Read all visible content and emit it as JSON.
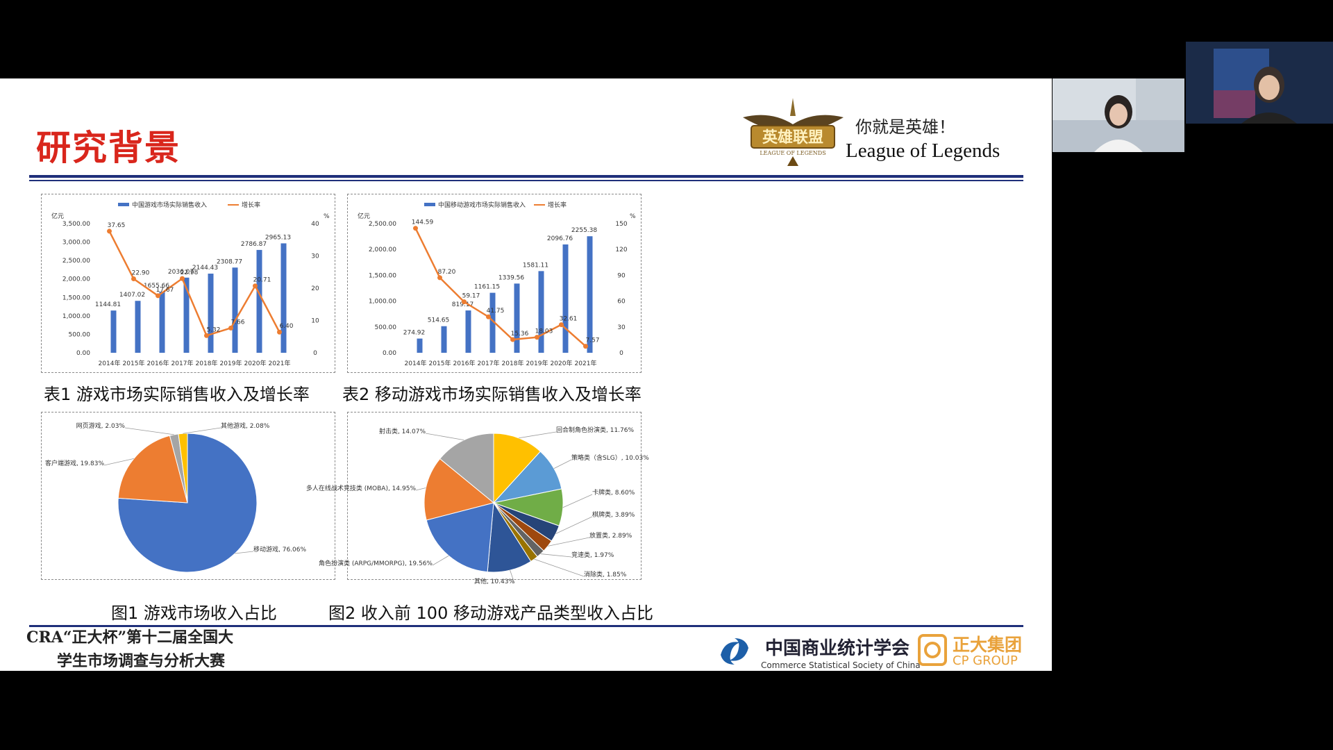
{
  "slide": {
    "title": "研究背景",
    "slogan": "你就是英雄！",
    "game_name": "League of Legends",
    "logo_text": "英雄联盟",
    "logo_subtext": "LEAGUE OF LEGENDS"
  },
  "captions": {
    "table1": "表1 游戏市场实际销售收入及增长率",
    "table2": "表2 移动游戏市场实际销售收入及增长率",
    "fig1": "图1 游戏市场收入占比",
    "fig2": "图2 收入前 100 移动游戏产品类型收入占比"
  },
  "footer": {
    "line1": "CRA“正大杯”第十二届全国大",
    "line2": "学生市场调查与分析大赛",
    "cssc_cn": "中国商业统计学会",
    "cssc_en": "Commerce Statistical Society of China",
    "cp_cn": "正大集团",
    "cp_en": "CP GROUP"
  },
  "colors": {
    "bar": "#4472c4",
    "line": "#ed7d31",
    "title_red": "#d9261c",
    "rule_navy": "#1f2f7a"
  },
  "chart_data": [
    {
      "type": "bar",
      "legend": [
        "中国游戏市场实际销售收入",
        "增长率"
      ],
      "ylabel": "亿元",
      "y2label": "%",
      "categories": [
        "2014年",
        "2015年",
        "2016年",
        "2017年",
        "2018年",
        "2019年",
        "2020年",
        "2021年"
      ],
      "y_ticks": [
        "3,500.00",
        "3,000.00",
        "2,500.00",
        "2,000.00",
        "1,500.00",
        "1,000.00",
        "500.00",
        "0.00"
      ],
      "y2_ticks": [
        "40",
        "30",
        "20",
        "10",
        "0"
      ],
      "ylim": [
        0,
        3500
      ],
      "y2lim": [
        0,
        40
      ],
      "series": [
        {
          "name": "中国游戏市场实际销售收入",
          "type": "bar",
          "values": [
            1144.81,
            1407.02,
            1655.66,
            2036.07,
            2144.43,
            2308.77,
            2786.87,
            2965.13
          ],
          "labels": [
            "1144.81",
            "1407.02",
            "1655.66",
            "2036.07",
            "2144.43",
            "2308.77",
            "2786.87",
            "2965.13"
          ]
        },
        {
          "name": "增长率",
          "type": "line",
          "values": [
            37.65,
            22.9,
            17.67,
            22.98,
            5.32,
            7.66,
            20.71,
            6.4
          ],
          "labels": [
            "37.65",
            "22.90",
            "17.67",
            "22.98",
            "5.32",
            "7.66",
            "20.71",
            "6.40"
          ]
        }
      ]
    },
    {
      "type": "bar",
      "legend": [
        "中国移动游戏市场实际销售收入",
        "增长率"
      ],
      "ylabel": "亿元",
      "y2label": "%",
      "categories": [
        "2014年",
        "2015年",
        "2016年",
        "2017年",
        "2018年",
        "2019年",
        "2020年",
        "2021年"
      ],
      "y_ticks": [
        "2,500.00",
        "2,000.00",
        "1,500.00",
        "1,000.00",
        "500.00",
        "0.00"
      ],
      "y2_ticks": [
        "150",
        "120",
        "90",
        "60",
        "30",
        "0"
      ],
      "ylim": [
        0,
        2500
      ],
      "y2lim": [
        0,
        150
      ],
      "series": [
        {
          "name": "中国移动游戏市场实际销售收入",
          "type": "bar",
          "values": [
            274.92,
            514.65,
            819.17,
            1161.15,
            1339.56,
            1581.11,
            2096.76,
            2255.38
          ],
          "labels": [
            "274.92",
            "514.65",
            "819.17",
            "1161.15",
            "1339.56",
            "1581.11",
            "2096.76",
            "2255.38"
          ]
        },
        {
          "name": "增长率",
          "type": "line",
          "values": [
            144.59,
            87.2,
            59.17,
            41.75,
            15.36,
            18.03,
            32.61,
            7.57
          ],
          "labels": [
            "144.59",
            "87.20",
            "59.17",
            "41.75",
            "15.36",
            "18.03",
            "32.61",
            "7.57"
          ]
        }
      ]
    },
    {
      "type": "pie",
      "slices": [
        {
          "label": "移动游戏, 76.06%",
          "value": 76.06,
          "color": "#4472c4"
        },
        {
          "label": "客户端游戏, 19.83%",
          "value": 19.83,
          "color": "#ed7d31"
        },
        {
          "label": "网页游戏, 2.03%",
          "value": 2.03,
          "color": "#a5a5a5"
        },
        {
          "label": "其他游戏, 2.08%",
          "value": 2.08,
          "color": "#ffc000"
        }
      ]
    },
    {
      "type": "pie",
      "slices": [
        {
          "label": "回合制角色扮演类, 11.76%",
          "value": 11.76,
          "color": "#ffc000"
        },
        {
          "label": "策略类（含SLG）, 10.03%",
          "value": 10.03,
          "color": "#5b9bd5"
        },
        {
          "label": "卡牌类, 8.60%",
          "value": 8.6,
          "color": "#70ad47"
        },
        {
          "label": "棋牌类, 3.89%",
          "value": 3.89,
          "color": "#264478"
        },
        {
          "label": "放置类, 2.89%",
          "value": 2.89,
          "color": "#9e480e"
        },
        {
          "label": "竞速类, 1.97%",
          "value": 1.97,
          "color": "#636363"
        },
        {
          "label": "消除类, 1.85%",
          "value": 1.85,
          "color": "#997300"
        },
        {
          "label": "其他, 10.43%",
          "value": 10.43,
          "color": "#2e5597"
        },
        {
          "label": "角色扮演类 (ARPG/MMORPG), 19.56%",
          "value": 19.56,
          "color": "#4472c4"
        },
        {
          "label": "多人在线战术竞技类 (MOBA), 14.95%",
          "value": 14.95,
          "color": "#ed7d31"
        },
        {
          "label": "射击类, 14.07%",
          "value": 14.07,
          "color": "#a5a5a5"
        }
      ]
    }
  ]
}
